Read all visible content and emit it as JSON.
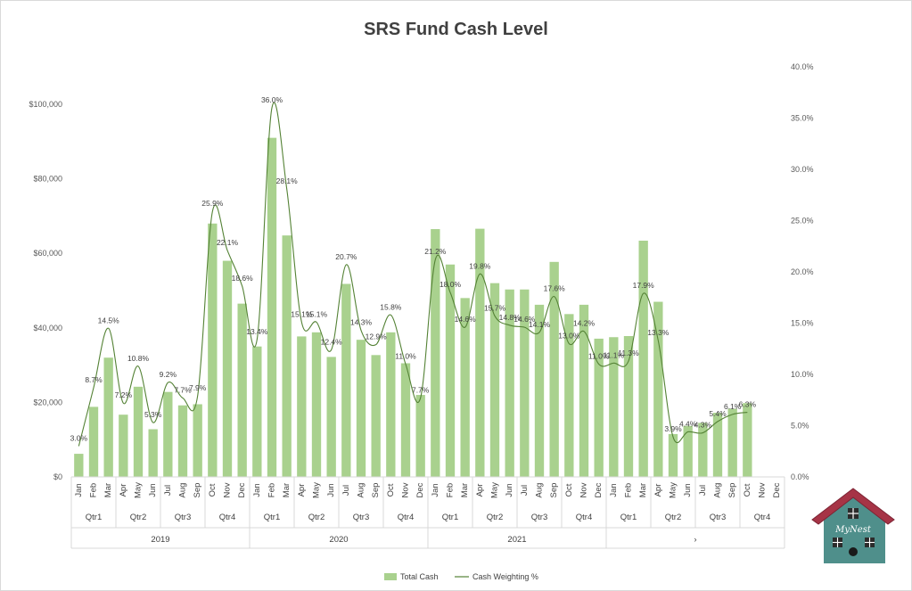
{
  "chart_data": {
    "type": "bar",
    "title": "SRS Fund Cash Level",
    "y_left": {
      "ticks": [
        "$0",
        "$20,000",
        "$40,000",
        "$60,000",
        "$80,000",
        "$100,000"
      ],
      "ylim": [
        0,
        100000
      ]
    },
    "y_right": {
      "ticks": [
        "0.0%",
        "5.0%",
        "10.0%",
        "15.0%",
        "20.0%",
        "25.0%",
        "30.0%",
        "35.0%",
        "40.0%"
      ],
      "ylim": [
        0,
        40
      ]
    },
    "months": [
      "Jan",
      "Feb",
      "Mar",
      "Apr",
      "May",
      "Jun",
      "Jul",
      "Aug",
      "Sep",
      "Oct",
      "Nov",
      "Dec",
      "Jan",
      "Feb",
      "Mar",
      "Apr",
      "May",
      "Jun",
      "Jul",
      "Aug",
      "Sep",
      "Oct",
      "Nov",
      "Dec",
      "Jan",
      "Feb",
      "Mar",
      "Apr",
      "May",
      "Jun",
      "Jul",
      "Aug",
      "Sep",
      "Oct",
      "Nov",
      "Dec",
      "Jan",
      "Feb",
      "Mar",
      "Apr",
      "May",
      "Jun",
      "Jul",
      "Aug",
      "Sep",
      "Oct",
      "Nov",
      "Dec"
    ],
    "quarters": [
      "Qtr1",
      "Qtr2",
      "Qtr3",
      "Qtr4",
      "Qtr1",
      "Qtr2",
      "Qtr3",
      "Qtr4",
      "Qtr1",
      "Qtr2",
      "Qtr3",
      "Qtr4",
      "Qtr1",
      "Qtr2",
      "Qtr3",
      "Qtr4"
    ],
    "years": [
      "2019",
      "2020",
      "2021",
      "›"
    ],
    "series": [
      {
        "name": "Total Cash",
        "kind": "bar",
        "color": "#a9d18e",
        "values": [
          6200,
          18800,
          32000,
          16700,
          24200,
          12800,
          22800,
          19200,
          19500,
          68000,
          58000,
          46500,
          35000,
          91000,
          64800,
          37700,
          38800,
          32200,
          51800,
          36800,
          32700,
          38800,
          30500,
          22000,
          66500,
          57000,
          48000,
          66600,
          52000,
          50300,
          50300,
          46200,
          57700,
          43700,
          46200,
          37100,
          37500,
          37800,
          63400,
          47000,
          11500,
          13700,
          14500,
          17200,
          18300,
          19800,
          null,
          null
        ]
      },
      {
        "name": "Cash Weighting %",
        "kind": "line",
        "color": "#548235",
        "values": [
          3.0,
          8.7,
          14.5,
          7.2,
          10.8,
          5.3,
          9.2,
          7.7,
          7.9,
          25.9,
          22.1,
          18.6,
          13.4,
          36.0,
          28.1,
          15.1,
          15.1,
          12.4,
          20.7,
          14.3,
          12.9,
          15.8,
          11.0,
          7.7,
          21.2,
          18.0,
          14.6,
          19.8,
          15.7,
          14.8,
          14.6,
          14.1,
          17.6,
          13.0,
          14.2,
          11.0,
          11.1,
          11.3,
          17.9,
          13.3,
          3.9,
          4.4,
          4.3,
          5.4,
          6.1,
          6.3,
          null,
          null
        ],
        "labels": [
          "3.0%",
          "8.7%",
          "14.5%",
          "7.2%",
          "10.8%",
          "5.3%",
          "9.2%",
          "7.7%",
          "7.9%",
          "25.9%",
          "22.1%",
          "18.6%",
          "13.4%",
          "36.0%",
          "28.1%",
          "15.1%",
          "15.1%",
          "12.4%",
          "20.7%",
          "14.3%",
          "12.9%",
          "15.8%",
          "11.0%",
          "7.7%",
          "21.2%",
          "18.0%",
          "14.6%",
          "19.8%",
          "15.7%",
          "14.8%",
          "14.6%",
          "14.1%",
          "17.6%",
          "13.0%",
          "14.2%",
          "11.0%",
          "11.1%",
          "11.3%",
          "17.9%",
          "13.3%",
          "3.9%",
          "4.4%",
          "4.3%",
          "5.4%",
          "6.1%",
          "6.3%",
          "",
          ""
        ]
      }
    ],
    "legend": {
      "placement": "bottom",
      "items": [
        "Total Cash",
        "Cash Weighting %"
      ]
    },
    "grid": false
  },
  "logo": {
    "text": "MyNest",
    "roof_color": "#a63446",
    "wall_color": "#4f8f8b"
  }
}
